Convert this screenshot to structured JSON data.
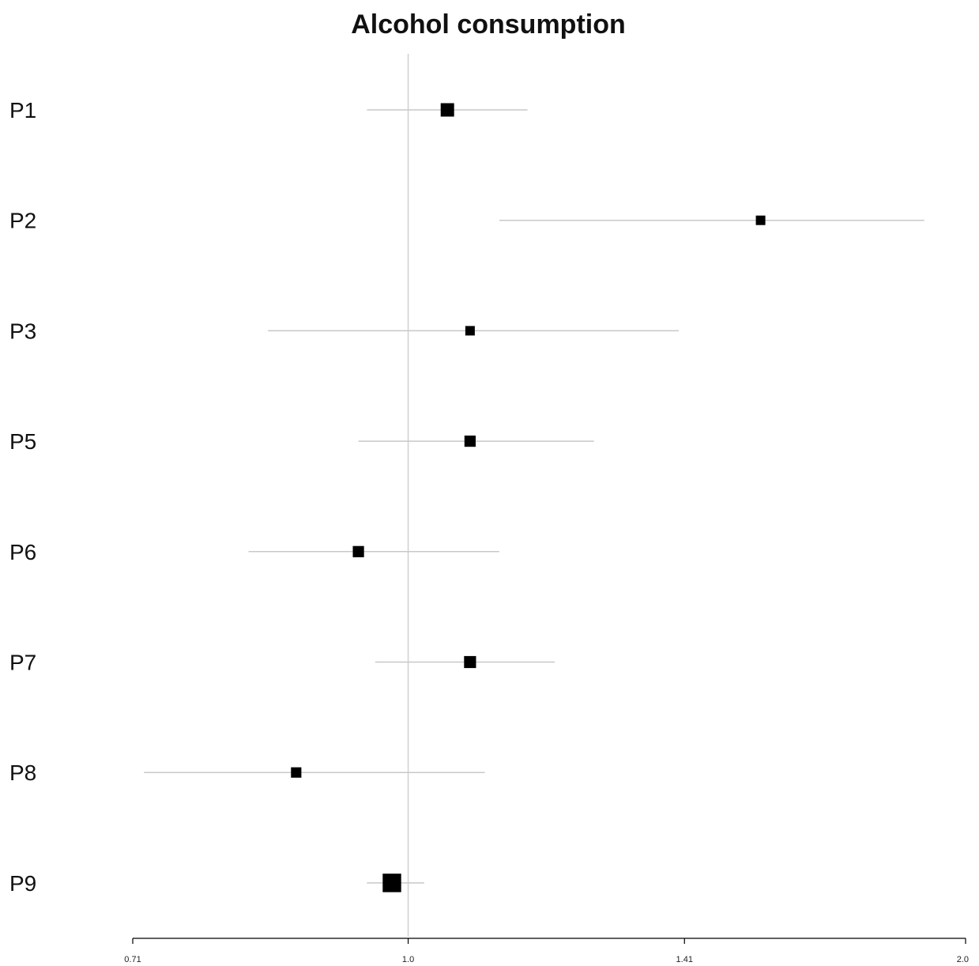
{
  "chart_data": {
    "type": "forest",
    "title": "Alcohol consumption",
    "xlabel": "",
    "ylabel": "",
    "x_scale": "log",
    "xlim": [
      0.71,
      2.0
    ],
    "reference_line": 1.0,
    "ticks": [
      {
        "value": 0.71,
        "label": "0.71"
      },
      {
        "value": 1.0,
        "label": "1.0"
      },
      {
        "value": 1.41,
        "label": "1.41"
      },
      {
        "value": 2.0,
        "label": "2.0"
      }
    ],
    "grid": false,
    "legend": "none",
    "rows": [
      {
        "label": "P1",
        "estimate": 1.05,
        "lower": 0.95,
        "upper": 1.16,
        "weight": 2
      },
      {
        "label": "P2",
        "estimate": 1.55,
        "lower": 1.12,
        "upper": 1.9,
        "weight": 1
      },
      {
        "label": "P3",
        "estimate": 1.08,
        "lower": 0.84,
        "upper": 1.4,
        "weight": 1
      },
      {
        "label": "P5",
        "estimate": 1.08,
        "lower": 0.94,
        "upper": 1.26,
        "weight": 1.4
      },
      {
        "label": "P6",
        "estimate": 0.94,
        "lower": 0.82,
        "upper": 1.12,
        "weight": 1.4
      },
      {
        "label": "P7",
        "estimate": 1.08,
        "lower": 0.96,
        "upper": 1.2,
        "weight": 1.6
      },
      {
        "label": "P8",
        "estimate": 0.87,
        "lower": 0.72,
        "upper": 1.1,
        "weight": 1.2
      },
      {
        "label": "P9",
        "estimate": 0.98,
        "lower": 0.95,
        "upper": 1.02,
        "weight": 3.8
      }
    ],
    "colors": {
      "marker": "#000000",
      "ci_line": "#c8c8c8",
      "reference_line": "#d0d0d0",
      "axis": "#000000"
    }
  }
}
